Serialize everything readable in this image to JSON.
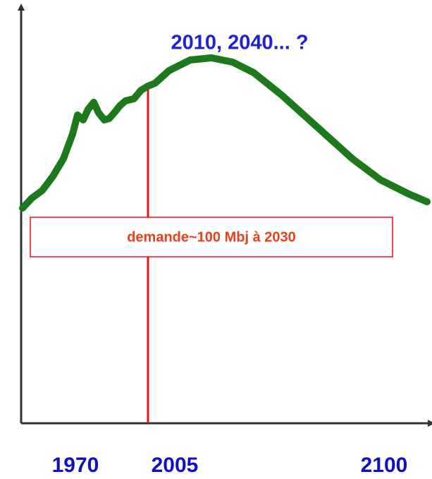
{
  "title": "2010, 2040... ?",
  "annotation": "demande~100 Mbj à 2030",
  "x_labels": [
    "1970",
    "2005",
    "2100"
  ]
}
